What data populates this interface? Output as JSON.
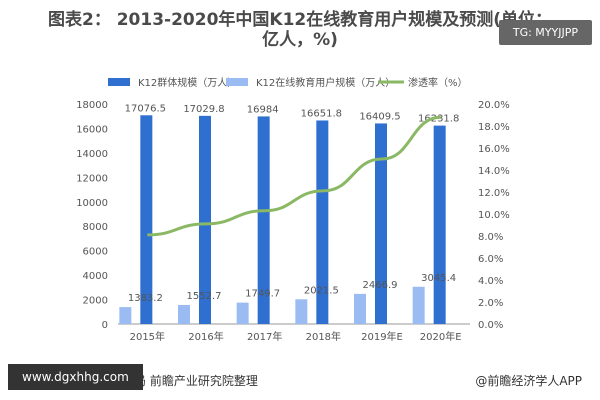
{
  "title": {
    "line1": "图表2： 2013-2020年中国K12在线教育用户规模及预测(单位：",
    "line2": "亿人，%)"
  },
  "badge": {
    "text": "TG: MYYJJPP"
  },
  "footer": {
    "source": "资料来源：国家统计局 前瞻产业研究院整理",
    "brand": "@前瞻经济学人APP",
    "url": "www.dgxhhg.com"
  },
  "chart_data": {
    "type": "bar",
    "categories": [
      "2015年",
      "2016年",
      "2017年",
      "2018年",
      "2019年E",
      "2020年E"
    ],
    "series": [
      {
        "name": "K12群体规模（万人）",
        "axis": "left",
        "type": "bar",
        "color": "#2f6fcf",
        "values": [
          17076.5,
          17029.8,
          16984,
          16651.8,
          16409.5,
          16231.8
        ],
        "labels": [
          "17076.5",
          "17029.8",
          "16984",
          "16651.8",
          "16409.5",
          "16231.8"
        ]
      },
      {
        "name": "K12在线教育用户规模（万人）",
        "axis": "left",
        "type": "bar",
        "color": "#9bbcf2",
        "values": [
          1383.2,
          1552.7,
          1749.7,
          2021.5,
          2466.9,
          3045.4
        ],
        "labels": [
          "1383.2",
          "1552.7",
          "1749.7",
          "2021.5",
          "2466.9",
          "3045.4"
        ]
      },
      {
        "name": "渗透率（%）",
        "axis": "right",
        "type": "line",
        "color": "#8ab864",
        "values": [
          8.1,
          9.1,
          10.3,
          12.1,
          15.0,
          18.8
        ]
      }
    ],
    "y_left": {
      "min": 0,
      "max": 18000,
      "ticks": [
        "0",
        "2000",
        "4000",
        "6000",
        "8000",
        "10000",
        "12000",
        "14000",
        "16000",
        "18000"
      ]
    },
    "y_right": {
      "min": 0,
      "max": 20,
      "ticks": [
        "0.0%",
        "2.0%",
        "4.0%",
        "6.0%",
        "8.0%",
        "10.0%",
        "12.0%",
        "14.0%",
        "16.0%",
        "18.0%",
        "20.0%"
      ]
    },
    "legend_position": "top",
    "grid": false
  }
}
